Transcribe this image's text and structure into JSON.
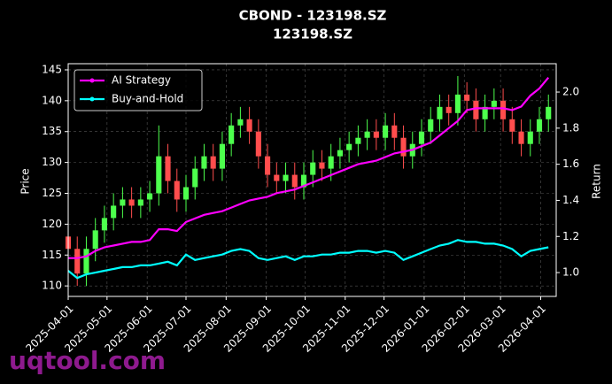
{
  "chart_data": {
    "type": "candlestick",
    "title": "CBOND - 123198.SZ",
    "subtitle": "123198.SZ",
    "watermark": "uqtool.com",
    "ylabel": "Price",
    "y2label": "Return",
    "up_color": "#4dff4d",
    "down_color": "#ff4d4d",
    "grid": true,
    "legend": "upper left",
    "x": [
      "2025-04-01",
      "2025-04-08",
      "2025-04-15",
      "2025-04-22",
      "2025-04-29",
      "2025-05-06",
      "2025-05-13",
      "2025-05-20",
      "2025-05-27",
      "2025-06-03",
      "2025-06-10",
      "2025-06-17",
      "2025-06-24",
      "2025-07-01",
      "2025-07-08",
      "2025-07-15",
      "2025-07-22",
      "2025-07-29",
      "2025-08-05",
      "2025-08-12",
      "2025-08-19",
      "2025-08-26",
      "2025-09-02",
      "2025-09-09",
      "2025-09-16",
      "2025-09-23",
      "2025-09-30",
      "2025-10-07",
      "2025-10-14",
      "2025-10-21",
      "2025-10-28",
      "2025-11-04",
      "2025-11-11",
      "2025-11-18",
      "2025-11-25",
      "2025-12-02",
      "2025-12-09",
      "2025-12-16",
      "2025-12-23",
      "2025-12-30",
      "2026-01-06",
      "2026-01-13",
      "2026-01-20",
      "2026-01-27",
      "2026-02-03",
      "2026-02-10",
      "2026-02-17",
      "2026-02-24",
      "2026-03-03",
      "2026-03-10",
      "2026-03-17",
      "2026-03-24",
      "2026-03-31",
      "2026-04-07"
    ],
    "open": [
      118,
      116,
      112,
      116,
      119,
      121,
      123,
      124,
      123,
      124,
      125,
      131,
      127,
      124,
      126,
      129,
      131,
      129,
      133,
      136,
      137,
      135,
      131,
      128,
      127,
      128,
      126,
      128,
      130,
      129,
      131,
      132,
      133,
      134,
      135,
      134,
      136,
      134,
      131,
      133,
      135,
      137,
      139,
      138,
      141,
      140,
      137,
      139,
      140,
      137,
      135,
      133,
      135,
      137
    ],
    "high": [
      120,
      118,
      118,
      121,
      123,
      125,
      126,
      126,
      126,
      127,
      136,
      133,
      129,
      128,
      131,
      133,
      133,
      135,
      138,
      139,
      139,
      137,
      133,
      130,
      130,
      130,
      130,
      132,
      132,
      133,
      134,
      135,
      136,
      137,
      137,
      138,
      138,
      136,
      135,
      137,
      139,
      141,
      141,
      144,
      143,
      142,
      141,
      142,
      142,
      139,
      137,
      137,
      139,
      141
    ],
    "low": [
      114,
      110,
      110,
      114,
      117,
      119,
      121,
      121,
      121,
      122,
      123,
      125,
      122,
      122,
      124,
      127,
      127,
      127,
      131,
      134,
      133,
      129,
      126,
      125,
      125,
      124,
      124,
      126,
      127,
      127,
      129,
      130,
      131,
      132,
      132,
      132,
      132,
      129,
      129,
      131,
      133,
      135,
      136,
      136,
      138,
      135,
      135,
      137,
      135,
      133,
      131,
      131,
      133,
      135
    ],
    "close": [
      116,
      112,
      116,
      119,
      121,
      123,
      124,
      123,
      124,
      125,
      131,
      127,
      124,
      126,
      129,
      131,
      129,
      133,
      136,
      137,
      135,
      131,
      128,
      127,
      128,
      126,
      128,
      130,
      129,
      131,
      132,
      133,
      134,
      135,
      134,
      136,
      134,
      131,
      133,
      135,
      137,
      139,
      138,
      141,
      140,
      137,
      139,
      140,
      137,
      135,
      133,
      135,
      137,
      139
    ],
    "series": [
      {
        "name": "AI Strategy",
        "color": "#ff00ff",
        "axis": "y2",
        "values": [
          1.08,
          1.08,
          1.09,
          1.12,
          1.14,
          1.15,
          1.16,
          1.17,
          1.17,
          1.18,
          1.24,
          1.24,
          1.23,
          1.28,
          1.3,
          1.32,
          1.33,
          1.34,
          1.36,
          1.38,
          1.4,
          1.41,
          1.42,
          1.44,
          1.45,
          1.46,
          1.48,
          1.5,
          1.52,
          1.54,
          1.56,
          1.58,
          1.6,
          1.61,
          1.62,
          1.64,
          1.66,
          1.67,
          1.68,
          1.7,
          1.72,
          1.76,
          1.8,
          1.84,
          1.9,
          1.91,
          1.91,
          1.91,
          1.91,
          1.9,
          1.92,
          1.98,
          2.02,
          2.08
        ]
      },
      {
        "name": "Buy-and-Hold",
        "color": "#00ffff",
        "axis": "y2",
        "values": [
          1.01,
          0.97,
          0.99,
          1.0,
          1.01,
          1.02,
          1.03,
          1.03,
          1.04,
          1.04,
          1.05,
          1.06,
          1.04,
          1.1,
          1.07,
          1.08,
          1.09,
          1.1,
          1.12,
          1.13,
          1.12,
          1.08,
          1.07,
          1.08,
          1.09,
          1.07,
          1.09,
          1.09,
          1.1,
          1.1,
          1.11,
          1.11,
          1.12,
          1.12,
          1.11,
          1.12,
          1.11,
          1.07,
          1.09,
          1.11,
          1.13,
          1.15,
          1.16,
          1.18,
          1.17,
          1.17,
          1.16,
          1.16,
          1.15,
          1.13,
          1.09,
          1.12,
          1.13,
          1.14
        ]
      }
    ],
    "xlim": [
      "2025-04-01",
      "2026-04-13"
    ],
    "xticks": [
      "2025-04-01",
      "2025-05-01",
      "2025-06-01",
      "2025-07-01",
      "2025-08-01",
      "2025-09-01",
      "2025-10-01",
      "2025-11-01",
      "2025-12-01",
      "2026-01-01",
      "2026-02-01",
      "2026-03-01",
      "2026-04-01"
    ],
    "ylim": [
      108.3,
      146.0
    ],
    "yticks": [
      110,
      115,
      120,
      125,
      130,
      135,
      140,
      145
    ],
    "y2lim": [
      0.868,
      2.157
    ],
    "y2ticks": [
      {
        "value": 1.0,
        "label": "1.0"
      },
      {
        "value": 1.2,
        "label": "1.2"
      },
      {
        "value": 1.4,
        "label": "1.4"
      },
      {
        "value": 1.6,
        "label": "1.6"
      },
      {
        "value": 1.8,
        "label": "1.8"
      },
      {
        "value": 2.0,
        "label": "2.0"
      }
    ]
  }
}
